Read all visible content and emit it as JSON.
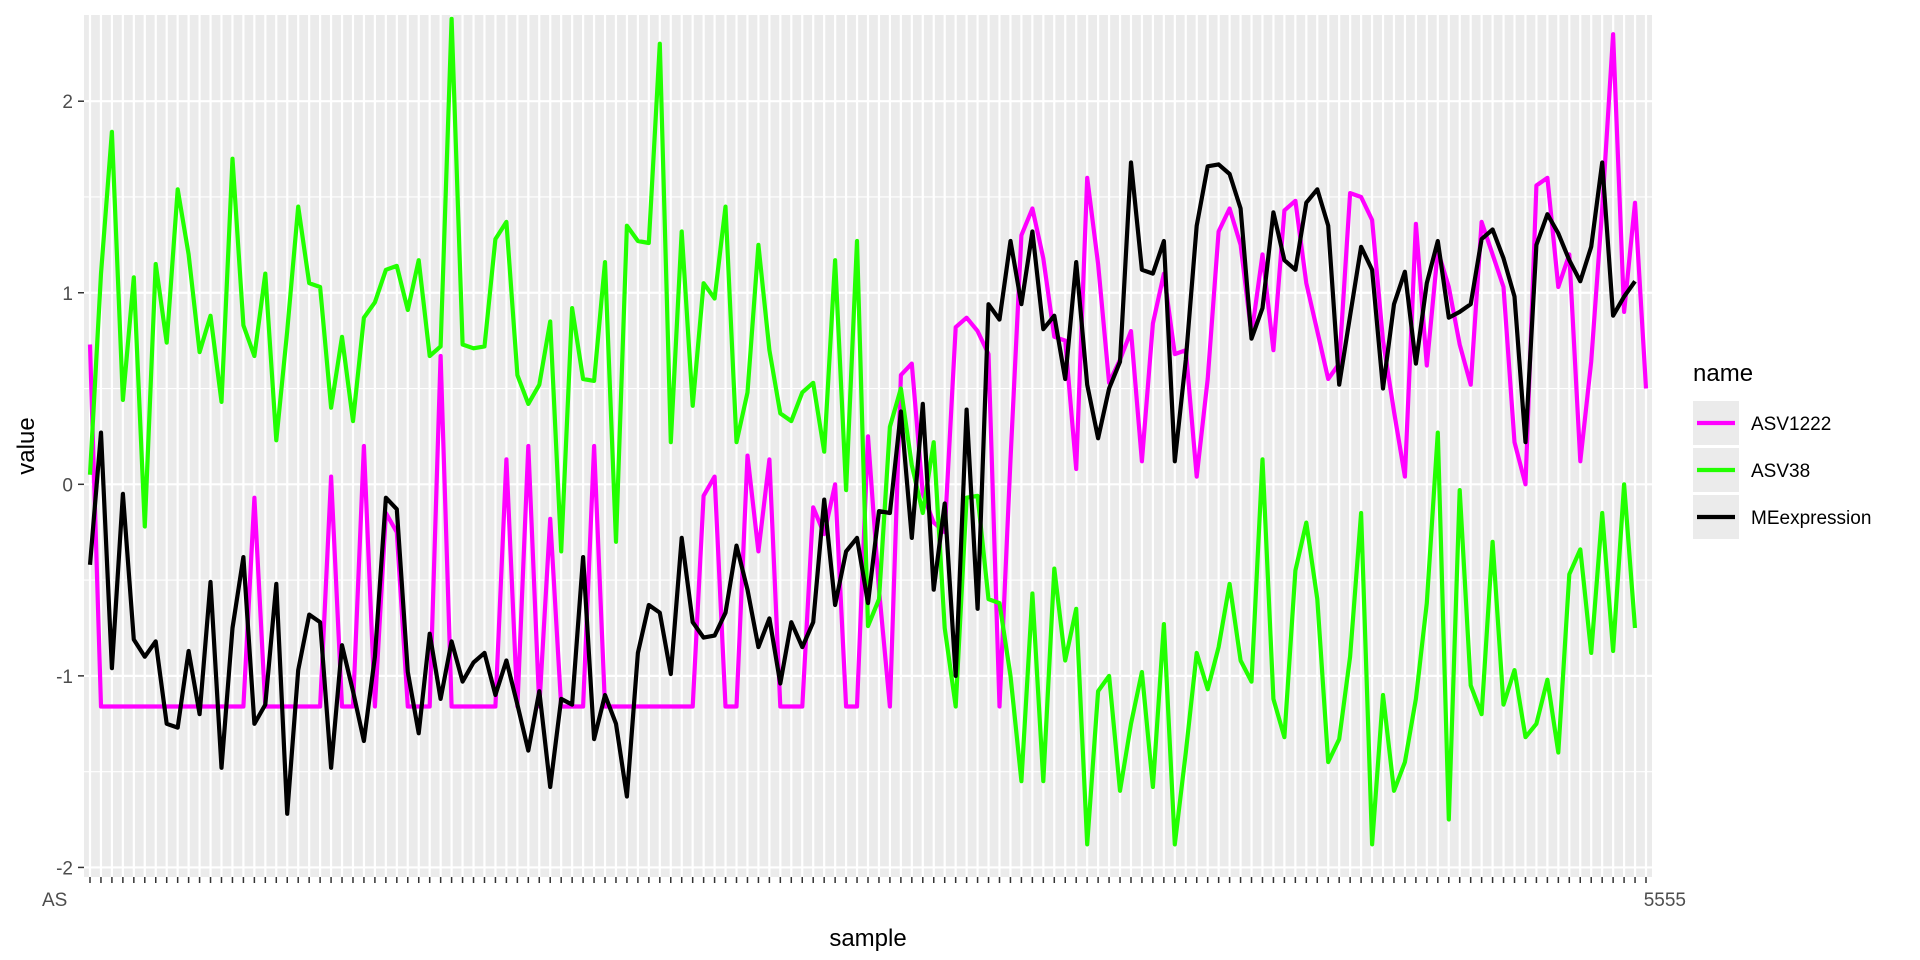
{
  "chart_data": {
    "type": "line",
    "xlabel": "sample",
    "ylabel": "value",
    "ylim": [
      -2.05,
      2.45
    ],
    "y_ticks": [
      -2,
      -1,
      0,
      1,
      2
    ],
    "x_tick_labels_shown": [
      "AS",
      "5555"
    ],
    "grid": true,
    "legend": {
      "title": "name",
      "placement": "right"
    },
    "colors": {
      "ASV1222": "#FF00FF",
      "ASV38": "#22FF00",
      "MEexpression": "#000000",
      "panel": "#EBEBEB",
      "grid": "#FFFFFF"
    },
    "series": [
      {
        "name": "ASV1222",
        "values": [
          0.73,
          -1.16,
          -1.16,
          -1.16,
          -1.16,
          -1.16,
          -1.16,
          -1.16,
          -1.16,
          -1.16,
          -1.16,
          -1.16,
          -1.16,
          -1.16,
          -1.16,
          -0.07,
          -1.16,
          -1.16,
          -1.16,
          -1.16,
          -1.16,
          -1.16,
          0.04,
          -1.16,
          -1.16,
          0.2,
          -1.16,
          -0.15,
          -0.25,
          -1.16,
          -1.16,
          -1.16,
          0.67,
          -1.16,
          -1.16,
          -1.16,
          -1.16,
          -1.16,
          0.13,
          -1.16,
          0.2,
          -1.16,
          -0.18,
          -1.16,
          -1.16,
          -1.16,
          0.2,
          -1.16,
          -1.16,
          -1.16,
          -1.16,
          -1.16,
          -1.16,
          -1.16,
          -1.16,
          -1.16,
          -0.06,
          0.04,
          -1.16,
          -1.16,
          0.15,
          -0.35,
          0.13,
          -1.16,
          -1.16,
          -1.16,
          -0.12,
          -0.26,
          0.0,
          -1.16,
          -1.16,
          0.25,
          -0.55,
          -1.16,
          0.57,
          0.63,
          -0.05,
          -0.2,
          -0.25,
          0.82,
          0.87,
          0.8,
          0.68,
          -1.16,
          0.13,
          1.3,
          1.44,
          1.18,
          0.77,
          0.75,
          0.08,
          1.6,
          1.15,
          0.53,
          0.65,
          0.8,
          0.12,
          0.84,
          1.1,
          0.68,
          0.7,
          0.04,
          0.55,
          1.32,
          1.44,
          1.25,
          0.78,
          1.2,
          0.7,
          1.43,
          1.48,
          1.05,
          0.8,
          0.55,
          0.63,
          1.52,
          1.5,
          1.38,
          0.75,
          0.38,
          0.04,
          1.36,
          0.62,
          1.22,
          1.03,
          0.73,
          0.52,
          1.37,
          1.2,
          1.03,
          0.22,
          0.0,
          1.56,
          1.6,
          1.03,
          1.2,
          0.12,
          0.64,
          1.44,
          2.35,
          0.9,
          1.47,
          0.5
        ]
      },
      {
        "name": "ASV38",
        "values": [
          0.05,
          1.1,
          1.84,
          0.44,
          1.08,
          -0.22,
          1.15,
          0.74,
          1.54,
          1.2,
          0.69,
          0.88,
          0.43,
          1.7,
          0.83,
          0.67,
          1.1,
          0.23,
          0.8,
          1.45,
          1.05,
          1.03,
          0.4,
          0.77,
          0.33,
          0.87,
          0.95,
          1.12,
          1.14,
          0.91,
          1.17,
          0.67,
          0.72,
          2.43,
          0.73,
          0.71,
          0.72,
          1.28,
          1.37,
          0.57,
          0.42,
          0.52,
          0.85,
          -0.35,
          0.92,
          0.55,
          0.54,
          1.16,
          -0.3,
          1.35,
          1.27,
          1.26,
          2.3,
          0.22,
          1.32,
          0.41,
          1.05,
          0.97,
          1.45,
          0.22,
          0.48,
          1.25,
          0.7,
          0.37,
          0.33,
          0.48,
          0.53,
          0.17,
          1.17,
          -0.03,
          1.27,
          -0.74,
          -0.6,
          0.3,
          0.5,
          0.1,
          -0.15,
          0.22,
          -0.75,
          -1.16,
          -0.07,
          -0.06,
          -0.6,
          -0.62,
          -1.0,
          -1.55,
          -0.57,
          -1.55,
          -0.44,
          -0.92,
          -0.65,
          -1.88,
          -1.08,
          -1.0,
          -1.6,
          -1.25,
          -0.98,
          -1.58,
          -0.73,
          -1.88,
          -1.4,
          -0.88,
          -1.07,
          -0.85,
          -0.52,
          -0.92,
          -1.03,
          0.13,
          -1.12,
          -1.32,
          -0.45,
          -0.2,
          -0.6,
          -1.45,
          -1.33,
          -0.9,
          -0.15,
          -1.88,
          -1.1,
          -1.6,
          -1.45,
          -1.12,
          -0.62,
          0.27,
          -1.75,
          -0.03,
          -1.05,
          -1.2,
          -0.3,
          -1.15,
          -0.97,
          -1.32,
          -1.25,
          -1.02,
          -1.4,
          -0.47,
          -0.34,
          -0.88,
          -0.15,
          -0.87,
          0.0,
          -0.75
        ]
      },
      {
        "name": "MEexpression",
        "values": [
          -0.42,
          0.27,
          -0.96,
          -0.05,
          -0.81,
          -0.9,
          -0.82,
          -1.25,
          -1.27,
          -0.87,
          -1.2,
          -0.51,
          -1.48,
          -0.75,
          -0.38,
          -1.25,
          -1.15,
          -0.52,
          -1.72,
          -0.97,
          -0.68,
          -0.72,
          -1.48,
          -0.84,
          -1.08,
          -1.34,
          -0.9,
          -0.07,
          -0.13,
          -0.98,
          -1.3,
          -0.78,
          -1.12,
          -0.82,
          -1.03,
          -0.93,
          -0.88,
          -1.1,
          -0.92,
          -1.15,
          -1.39,
          -1.08,
          -1.58,
          -1.12,
          -1.15,
          -0.38,
          -1.33,
          -1.1,
          -1.25,
          -1.63,
          -0.88,
          -0.63,
          -0.67,
          -0.99,
          -0.28,
          -0.72,
          -0.8,
          -0.79,
          -0.67,
          -0.32,
          -0.55,
          -0.85,
          -0.7,
          -1.04,
          -0.72,
          -0.85,
          -0.72,
          -0.08,
          -0.63,
          -0.35,
          -0.28,
          -0.62,
          -0.14,
          -0.15,
          0.38,
          -0.28,
          0.42,
          -0.55,
          -0.1,
          -1.0,
          0.39,
          -0.65,
          0.94,
          0.86,
          1.27,
          0.94,
          1.32,
          0.81,
          0.88,
          0.55,
          1.16,
          0.52,
          0.24,
          0.5,
          0.64,
          1.68,
          1.12,
          1.1,
          1.27,
          0.12,
          0.65,
          1.35,
          1.66,
          1.67,
          1.62,
          1.44,
          0.76,
          0.92,
          1.42,
          1.17,
          1.12,
          1.47,
          1.54,
          1.35,
          0.52,
          0.88,
          1.24,
          1.12,
          0.5,
          0.94,
          1.11,
          0.63,
          1.05,
          1.27,
          0.87,
          0.9,
          0.94,
          1.28,
          1.33,
          1.18,
          0.98,
          0.22,
          1.25,
          1.41,
          1.31,
          1.17,
          1.06,
          1.24,
          1.68,
          0.88,
          0.98,
          1.06
        ]
      }
    ]
  }
}
